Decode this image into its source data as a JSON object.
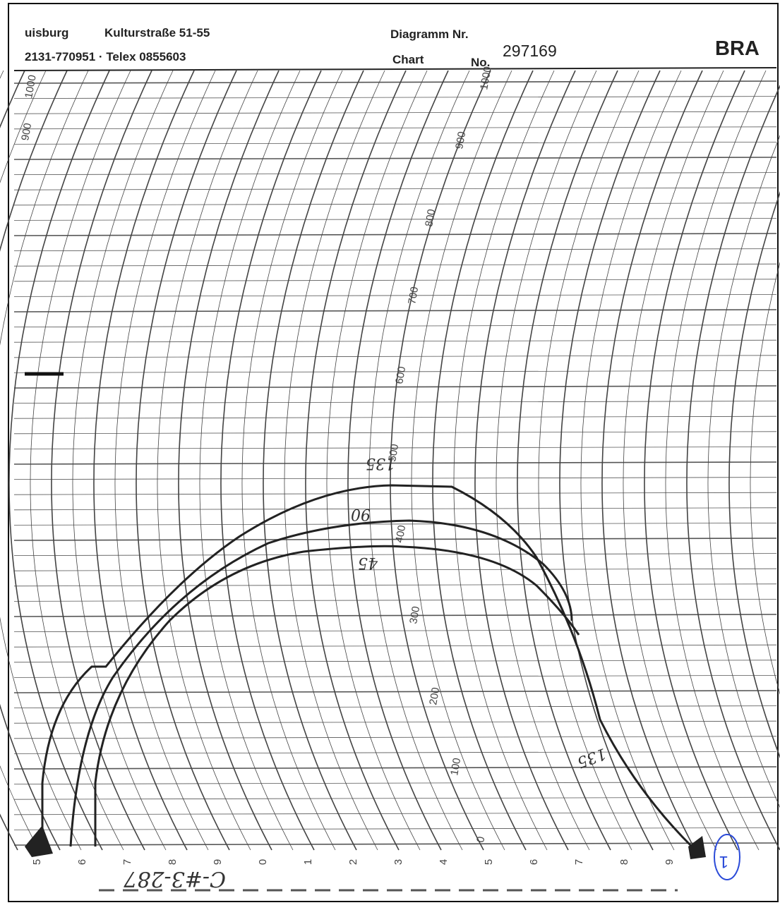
{
  "header": {
    "location": "uisburg",
    "address": "Kulturstraße 51-55",
    "phone": "2131-770951 · Telex 0855603",
    "diagram_label": "Diagramm Nr.",
    "chart_label": "Chart",
    "number_label": "No.",
    "chart_number": "297169",
    "brand": "BRA"
  },
  "scale": {
    "unit_labels": [
      "0",
      "100",
      "200",
      "300",
      "400",
      "500",
      "600",
      "700",
      "800",
      "900",
      "1000"
    ],
    "left_labels": [
      "1000",
      "900"
    ],
    "minute_labels": [
      "5",
      "6",
      "7",
      "8",
      "9",
      "0",
      "1",
      "2",
      "3",
      "4",
      "5",
      "6",
      "7",
      "8",
      "9"
    ]
  },
  "annotations": {
    "curve_labels": [
      "135",
      "90",
      "45",
      "135"
    ],
    "sample": "C-#3-287",
    "mark": "1"
  }
}
